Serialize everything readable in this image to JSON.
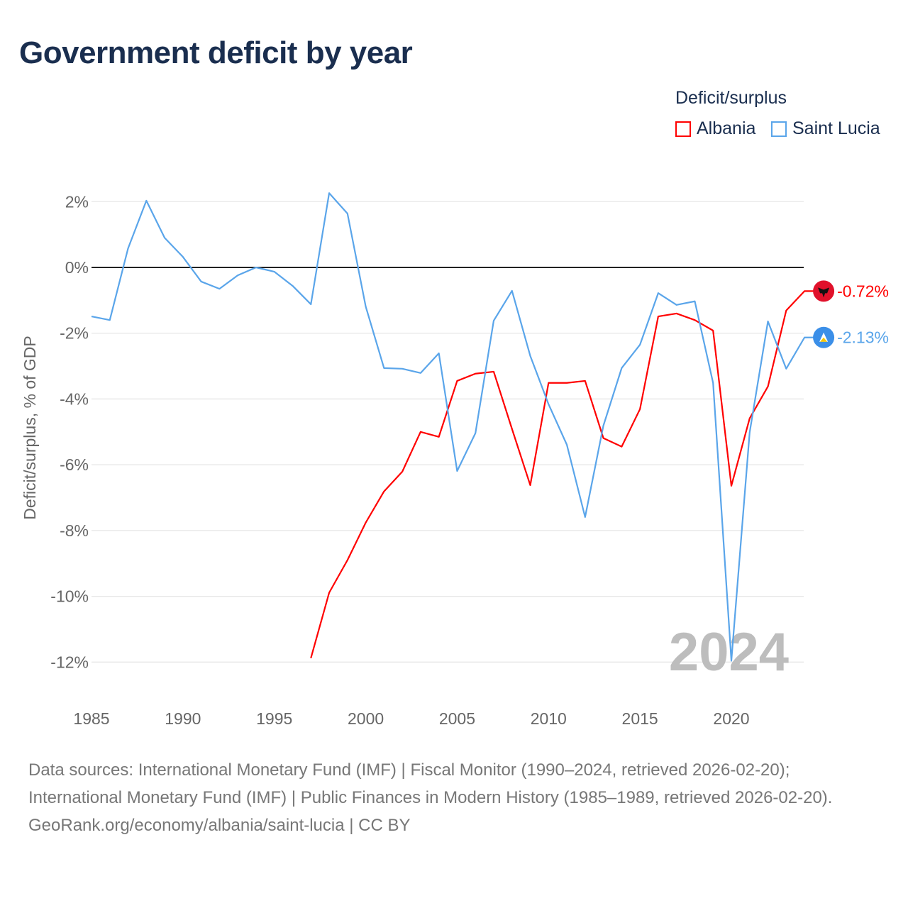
{
  "chart_data": {
    "type": "line",
    "title": "Government deficit by year",
    "xlabel": "",
    "ylabel": "Deficit/surplus, % of GDP",
    "xlim": [
      1985,
      2024
    ],
    "ylim": [
      -12,
      2
    ],
    "x_ticks": [
      "1985",
      "1990",
      "1995",
      "2000",
      "2005",
      "2010",
      "2015",
      "2020"
    ],
    "y_ticks": [
      "2%",
      "0%",
      "-2%",
      "-4%",
      "-6%",
      "-8%",
      "-10%",
      "-12%"
    ],
    "year_watermark": "2024",
    "legend": {
      "title": "Deficit/surplus",
      "position": "top-right"
    },
    "series": [
      {
        "name": "Albania",
        "color": "#ff0000",
        "end_label": "-0.72%",
        "x": [
          1997,
          1998,
          1999,
          2000,
          2001,
          2002,
          2003,
          2004,
          2005,
          2006,
          2007,
          2008,
          2009,
          2010,
          2011,
          2012,
          2013,
          2014,
          2015,
          2016,
          2017,
          2018,
          2019,
          2020,
          2021,
          2022,
          2023,
          2024
        ],
        "values": [
          -11.88,
          -9.89,
          -8.9,
          -7.76,
          -6.81,
          -6.21,
          -5.0,
          -5.15,
          -3.45,
          -3.23,
          -3.17,
          -4.91,
          -6.62,
          -3.51,
          -3.51,
          -3.45,
          -5.19,
          -5.45,
          -4.31,
          -1.49,
          -1.4,
          -1.6,
          -1.92,
          -6.64,
          -4.59,
          -3.62,
          -1.31,
          -0.72
        ]
      },
      {
        "name": "Saint Lucia",
        "color": "#5aa5ea",
        "end_label": "-2.13%",
        "x": [
          1985,
          1986,
          1987,
          1988,
          1989,
          1990,
          1991,
          1992,
          1993,
          1994,
          1995,
          1996,
          1997,
          1998,
          1999,
          2000,
          2001,
          2002,
          2003,
          2004,
          2005,
          2006,
          2007,
          2008,
          2009,
          2010,
          2011,
          2012,
          2013,
          2014,
          2015,
          2016,
          2017,
          2018,
          2019,
          2020,
          2021,
          2022,
          2023,
          2024
        ],
        "values": [
          -1.49,
          -1.6,
          0.58,
          2.03,
          0.9,
          0.32,
          -0.43,
          -0.65,
          -0.24,
          0,
          -0.13,
          -0.56,
          -1.12,
          2.26,
          1.64,
          -1.19,
          -3.06,
          -3.08,
          -3.21,
          -2.61,
          -6.19,
          -5.04,
          -1.62,
          -0.71,
          -2.69,
          -4.16,
          -5.39,
          -7.59,
          -4.81,
          -3.06,
          -2.35,
          -0.78,
          -1.14,
          -1.03,
          -3.51,
          -11.96,
          -5.02,
          -1.64,
          -3.08,
          -2.13
        ]
      }
    ]
  },
  "footer": {
    "sources": "Data sources: International Monetary Fund (IMF) | Fiscal Monitor (1990–2024, retrieved 2026-02-20); International Monetary Fund (IMF) | Public Finances in Modern History (1985–1989, retrieved 2026-02-20).",
    "credit": "GeoRank.org/economy/albania/saint-lucia | CC BY"
  }
}
